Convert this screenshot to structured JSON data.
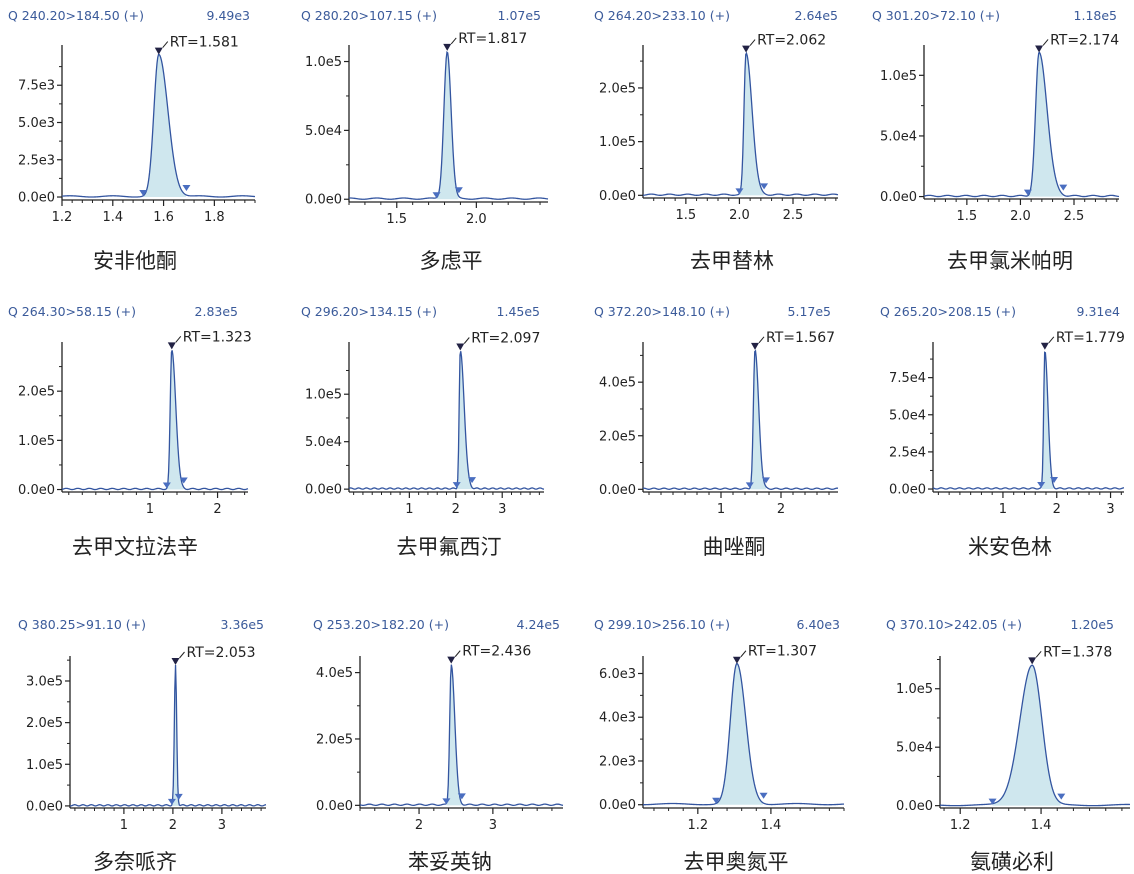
{
  "colors": {
    "header_text": "#3a5a9a",
    "trace_line": "#3355a0",
    "peak_fill": "#cfe7ee",
    "marker": "#4a6ec0",
    "apex_marker": "#222244",
    "axis": "#222222"
  },
  "chart_data": [
    {
      "type": "line",
      "title": "安非他酮",
      "transition": "Q 240.20>184.50 (+)",
      "max_intensity_label": "9.49e3",
      "retention_time_label": "RT=1.581",
      "rt": 1.581,
      "peak_height": 9490,
      "xlim": [
        1.2,
        1.96
      ],
      "ylim": [
        -200,
        10200
      ],
      "x_ticks": [
        "1.2",
        "1.4",
        "1.6",
        "1.8"
      ],
      "y_ticks": [
        "0.0e0",
        "2.5e3",
        "5.0e3",
        "7.5e3"
      ],
      "peak_start": 1.52,
      "peak_end": 1.69,
      "xlabel": "",
      "ylabel": ""
    },
    {
      "type": "line",
      "title": "多虑平",
      "transition": "Q 280.20>107.15 (+)",
      "max_intensity_label": "1.07e5",
      "retention_time_label": "RT=1.817",
      "rt": 1.817,
      "peak_height": 107000,
      "xlim": [
        1.2,
        2.45
      ],
      "ylim": [
        -2000,
        112000
      ],
      "x_ticks": [
        "1.5",
        "2.0"
      ],
      "y_ticks": [
        "0.0e0",
        "5.0e4",
        "1.0e5"
      ],
      "peak_start": 1.75,
      "peak_end": 1.89,
      "xlabel": "",
      "ylabel": ""
    },
    {
      "type": "line",
      "title": "去甲替林",
      "transition": "Q 264.20>233.10 (+)",
      "max_intensity_label": "2.64e5",
      "retention_time_label": "RT=2.062",
      "rt": 2.062,
      "peak_height": 264000,
      "xlim": [
        1.1,
        2.92
      ],
      "ylim": [
        -5000,
        280000
      ],
      "x_ticks": [
        "1.5",
        "2.0",
        "2.5"
      ],
      "y_ticks": [
        "0.0e0",
        "1.0e5",
        "2.0e5"
      ],
      "peak_start": 2.0,
      "peak_end": 2.23,
      "xlabel": "",
      "ylabel": ""
    },
    {
      "type": "line",
      "title": "去甲氯米帕明",
      "transition": "Q 301.20>72.10 (+)",
      "max_intensity_label": "1.18e5",
      "retention_time_label": "RT=2.174",
      "rt": 2.174,
      "peak_height": 118000,
      "xlim": [
        1.1,
        2.92
      ],
      "ylim": [
        -2000,
        125000
      ],
      "x_ticks": [
        "1.5",
        "2.0",
        "2.5"
      ],
      "y_ticks": [
        "0.0e0",
        "5.0e4",
        "1.0e5"
      ],
      "peak_start": 2.07,
      "peak_end": 2.4,
      "xlabel": "",
      "ylabel": ""
    },
    {
      "type": "line",
      "title": "去甲文拉法辛",
      "transition": "Q 264.30>58.15 (+)",
      "max_intensity_label": "2.83e5",
      "retention_time_label": "RT=1.323",
      "rt": 1.323,
      "peak_height": 283000,
      "xlim": [
        -0.3,
        2.45
      ],
      "ylim": [
        -5000,
        300000
      ],
      "x_ticks": [
        "1",
        "2"
      ],
      "y_ticks": [
        "0.0e0",
        "1.0e5",
        "2.0e5"
      ],
      "peak_start": 1.25,
      "peak_end": 1.5,
      "xlabel": "",
      "ylabel": ""
    },
    {
      "type": "line",
      "title": "去甲氟西汀",
      "transition": "Q 296.20>134.15 (+)",
      "max_intensity_label": "1.45e5",
      "retention_time_label": "RT=2.097",
      "rt": 2.097,
      "peak_height": 145000,
      "xlim": [
        -0.3,
        3.9
      ],
      "ylim": [
        -3000,
        155000
      ],
      "x_ticks": [
        "1",
        "2",
        "3"
      ],
      "y_ticks": [
        "0.0e0",
        "5.0e4",
        "1.0e5"
      ],
      "peak_start": 2.02,
      "peak_end": 2.35,
      "xlabel": "",
      "ylabel": ""
    },
    {
      "type": "line",
      "title": "曲唑酮",
      "transition": "Q 372.20>148.10 (+)",
      "max_intensity_label": "5.17e5",
      "retention_time_label": "RT=1.567",
      "rt": 1.567,
      "peak_height": 517000,
      "xlim": [
        -0.3,
        2.95
      ],
      "ylim": [
        -10000,
        550000
      ],
      "x_ticks": [
        "1",
        "2"
      ],
      "y_ticks": [
        "0.0e0",
        "2.0e5",
        "4.0e5"
      ],
      "peak_start": 1.48,
      "peak_end": 1.75,
      "xlabel": "",
      "ylabel": ""
    },
    {
      "type": "line",
      "title": "米安色林",
      "transition": "Q 265.20>208.15 (+)",
      "max_intensity_label": "9.31e4",
      "retention_time_label": "RT=1.779",
      "rt": 1.779,
      "peak_height": 93100,
      "xlim": [
        -0.3,
        3.25
      ],
      "ylim": [
        -2000,
        99000
      ],
      "x_ticks": [
        "1",
        "2",
        "3"
      ],
      "y_ticks": [
        "0.0e0",
        "2.5e4",
        "5.0e4",
        "7.5e4"
      ],
      "peak_start": 1.71,
      "peak_end": 1.95,
      "xlabel": "",
      "ylabel": ""
    },
    {
      "type": "line",
      "title": "多奈哌齐",
      "transition": "Q 380.25>91.10 (+)",
      "max_intensity_label": "3.36e5",
      "retention_time_label": "RT=2.053",
      "rt": 2.053,
      "peak_height": 336000,
      "xlim": [
        -0.1,
        3.9
      ],
      "ylim": [
        -5000,
        360000
      ],
      "x_ticks": [
        "1",
        "2",
        "3"
      ],
      "y_ticks": [
        "0.0e0",
        "1.0e5",
        "2.0e5",
        "3.0e5"
      ],
      "peak_start": 1.98,
      "peak_end": 2.12,
      "xlabel": "",
      "ylabel": ""
    },
    {
      "type": "line",
      "title": "苯妥英钠",
      "transition": "Q 253.20>182.20 (+)",
      "max_intensity_label": "4.24e5",
      "retention_time_label": "RT=2.436",
      "rt": 2.436,
      "peak_height": 424000,
      "xlim": [
        1.2,
        3.95
      ],
      "ylim": [
        -8000,
        450000
      ],
      "x_ticks": [
        "2",
        "3"
      ],
      "y_ticks": [
        "0.0e0",
        "2.0e5",
        "4.0e5"
      ],
      "peak_start": 2.37,
      "peak_end": 2.58,
      "xlabel": "",
      "ylabel": ""
    },
    {
      "type": "line",
      "title": "去甲奥氮平",
      "transition": "Q 299.10>256.10 (+)",
      "max_intensity_label": "6.40e3",
      "retention_time_label": "RT=1.307",
      "rt": 1.307,
      "peak_height": 6400,
      "xlim": [
        1.05,
        1.6
      ],
      "ylim": [
        -150,
        6800
      ],
      "x_ticks": [
        "1.2",
        "1.4"
      ],
      "y_ticks": [
        "0.0e0",
        "2.0e3",
        "4.0e3",
        "6.0e3"
      ],
      "peak_start": 1.25,
      "peak_end": 1.38,
      "xlabel": "",
      "ylabel": ""
    },
    {
      "type": "line",
      "title": "氨磺必利",
      "transition": "Q 370.10>242.05 (+)",
      "max_intensity_label": "1.20e5",
      "retention_time_label": "RT=1.378",
      "rt": 1.378,
      "peak_height": 120000,
      "xlim": [
        1.15,
        1.62
      ],
      "ylim": [
        -2000,
        128000
      ],
      "x_ticks": [
        "1.2",
        "1.4"
      ],
      "y_ticks": [
        "0.0e0",
        "5.0e4",
        "1.0e5"
      ],
      "peak_start": 1.28,
      "peak_end": 1.45,
      "xlabel": "",
      "ylabel": ""
    }
  ]
}
